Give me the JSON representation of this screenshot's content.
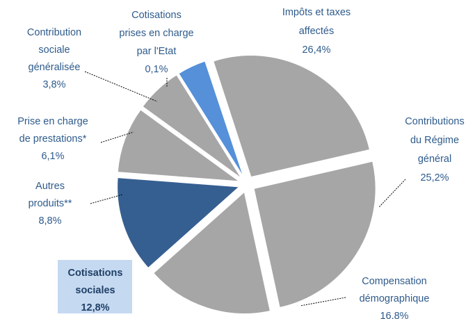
{
  "chart_data": {
    "type": "pie",
    "categories": [
      [
        "Impôts et taxes",
        "affectés"
      ],
      [
        "Contributions",
        "du Régime",
        "général"
      ],
      [
        "Compensation",
        "démographique"
      ],
      [
        "Cotisations",
        "sociales"
      ],
      [
        "Autres",
        "produits**"
      ],
      [
        "Prise en charge",
        "de prestations*"
      ],
      [
        "Contribution",
        "sociale",
        "généralisée"
      ],
      [
        "Cotisations",
        "prises en charge",
        "par l'Etat"
      ]
    ],
    "values": [
      26.4,
      25.2,
      16.8,
      12.8,
      8.8,
      6.1,
      3.8,
      0.1
    ],
    "value_labels": [
      "26,4%",
      "25,2%",
      "16,8%",
      "12,8%",
      "8,8%",
      "6,1%",
      "3,8%",
      "0,1%"
    ],
    "colors": [
      "#a6a6a6",
      "#a6a6a6",
      "#a6a6a6",
      "#365f91",
      "#a6a6a6",
      "#a6a6a6",
      "#5590d9",
      "#a6a6a6"
    ],
    "highlight": 3
  }
}
